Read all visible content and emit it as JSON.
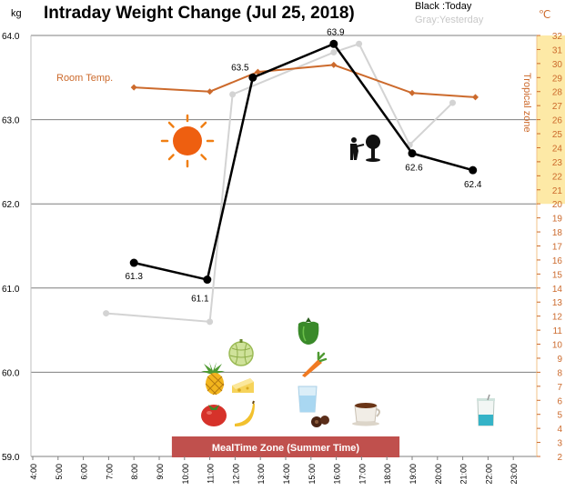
{
  "chart_data": {
    "type": "line",
    "title": "Intraday Weight Change (Jul 25, 2018)",
    "y_unit": "kg",
    "y2_unit": "℃",
    "ylim": [
      59.0,
      64.0
    ],
    "y_ticks": [
      "59.0",
      "60.0",
      "61.0",
      "62.0",
      "63.0",
      "64.0"
    ],
    "y2lim": [
      2,
      32
    ],
    "y2_ticks": [
      "2",
      "3",
      "4",
      "5",
      "6",
      "7",
      "8",
      "9",
      "10",
      "11",
      "12",
      "13",
      "14",
      "15",
      "16",
      "17",
      "18",
      "19",
      "20",
      "21",
      "22",
      "23",
      "24",
      "25",
      "26",
      "27",
      "28",
      "29",
      "30",
      "31",
      "32"
    ],
    "xlim": [
      4,
      24
    ],
    "x_ticks": [
      "4:00",
      "5:00",
      "6:00",
      "7:00",
      "8:00",
      "9:00",
      "10:00",
      "11:00",
      "12:00",
      "13:00",
      "14:00",
      "15:00",
      "16:00",
      "17:00",
      "18:00",
      "19:00",
      "20:00",
      "21:00",
      "22:00",
      "23:00"
    ],
    "legend": {
      "today": "Black :Today",
      "yesterday": "Gray:Yesterday"
    },
    "series": [
      {
        "name": "Today",
        "color": "#000000",
        "points": [
          {
            "x": 8.0,
            "y": 61.3,
            "label": "61.3"
          },
          {
            "x": 10.9,
            "y": 61.1,
            "label": "61.1"
          },
          {
            "x": 12.7,
            "y": 63.5,
            "label": "63.5"
          },
          {
            "x": 15.9,
            "y": 63.9,
            "label": "63.9"
          },
          {
            "x": 19.0,
            "y": 62.6,
            "label": "62.6"
          },
          {
            "x": 21.4,
            "y": 62.4,
            "label": ""
          }
        ],
        "extra_labels": [
          "62.4"
        ]
      },
      {
        "name": "Yesterday",
        "color": "#d3d3d3",
        "points": [
          {
            "x": 6.9,
            "y": 60.7
          },
          {
            "x": 11.0,
            "y": 60.6
          },
          {
            "x": 11.9,
            "y": 63.3
          },
          {
            "x": 15.9,
            "y": 63.8
          },
          {
            "x": 16.9,
            "y": 63.9
          },
          {
            "x": 18.9,
            "y": 62.7
          },
          {
            "x": 20.6,
            "y": 63.2
          }
        ]
      },
      {
        "name": "Room Temp.",
        "color": "#cc6a2c",
        "axis": "right",
        "points": [
          {
            "x": 8.0,
            "y": 28.3
          },
          {
            "x": 11.0,
            "y": 28.0
          },
          {
            "x": 12.9,
            "y": 29.4
          },
          {
            "x": 15.9,
            "y": 29.9
          },
          {
            "x": 19.0,
            "y": 27.9
          },
          {
            "x": 21.5,
            "y": 27.6
          }
        ]
      }
    ],
    "annotations": {
      "room_temp_label": "Room Temp.",
      "tropical_zone_label": "Tropical zone",
      "tropical_zone_range": [
        20,
        32
      ],
      "meal_zone_label": "MealTime Zone (Summer Time)",
      "meal_zone_range": [
        9.5,
        18.5
      ]
    },
    "colors": {
      "temp": "#cc6a2c",
      "tropical_band": "#fde9a6",
      "meal_band": "#c0504d",
      "grid": "#7f7f7f"
    },
    "icons": [
      "sun-icon",
      "gardener-icon",
      "melon-icon",
      "pepper-icon",
      "pineapple-icon",
      "cheese-icon",
      "carrot-icon",
      "glass-of-water-icon",
      "tomato-icon",
      "banana-icon",
      "chocolate-icon",
      "coffee-icon",
      "yogurt-drink-icon"
    ]
  }
}
